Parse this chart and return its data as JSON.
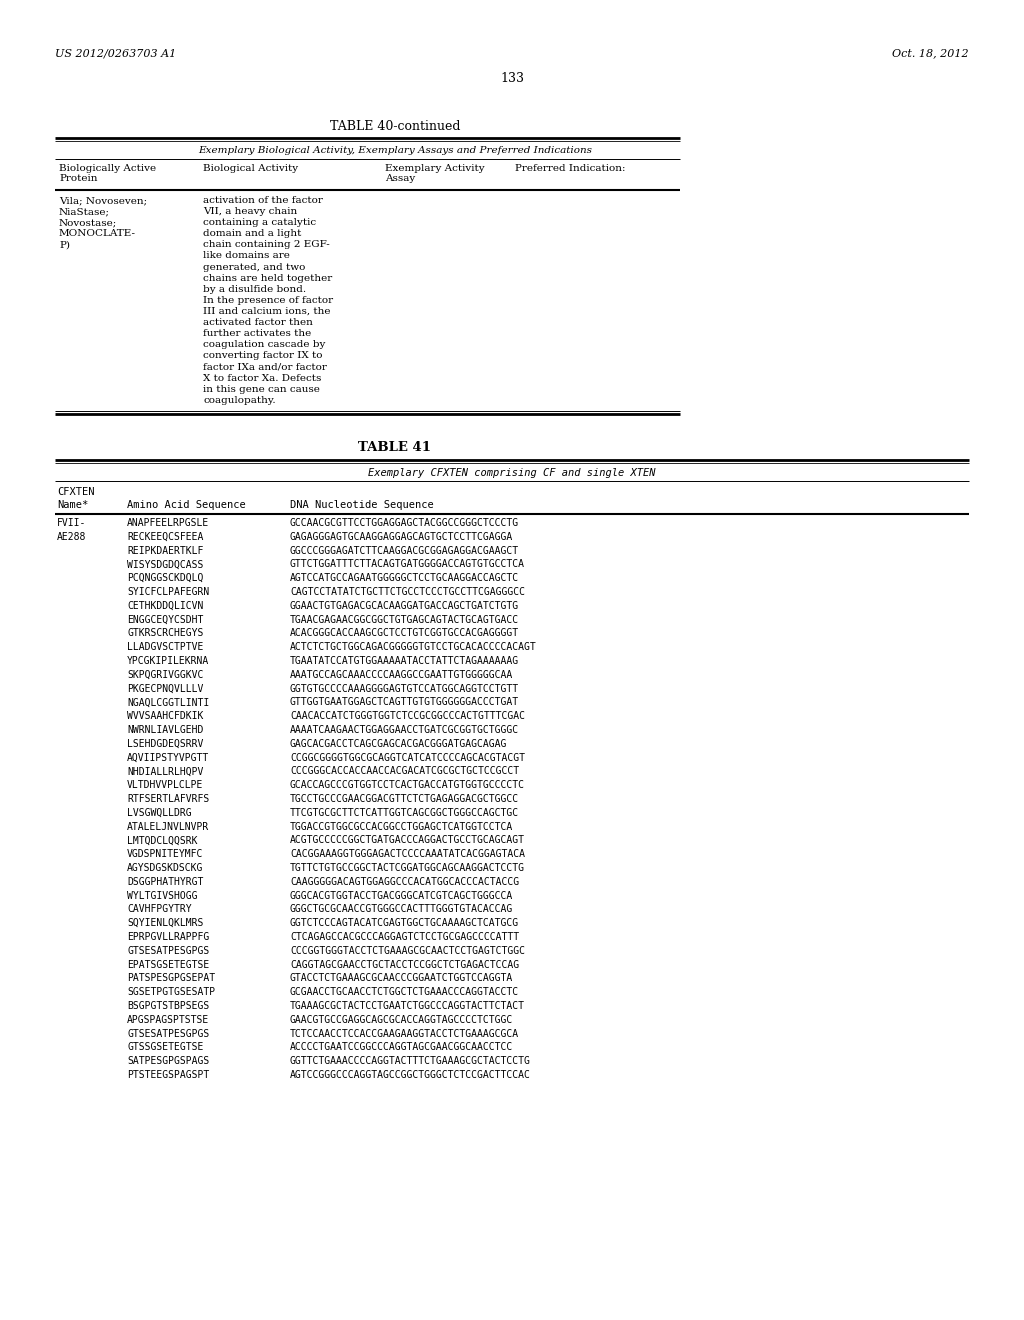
{
  "background_color": "#ffffff",
  "page_number": "133",
  "patent_left": "US 2012/0263703 A1",
  "patent_right": "Oct. 18, 2012",
  "table40_title": "TABLE 40-continued",
  "table40_subtitle": "Exemplary Biological Activity, Exemplary Assays and Preferred Indications",
  "table40_col0_header": "Biologically Active\nProtein",
  "table40_col1_header": "Biological Activity",
  "table40_col2_header": "Exemplary Activity\nAssay",
  "table40_col3_header": "Preferred Indication:",
  "table40_cell0": "Vila; Novoseven;\nNiaStase;\nNovostase;\nMONOCLATE-\nP)",
  "table40_cell1": "activation of the factor\nVII, a heavy chain\ncontaining a catalytic\ndomain and a light\nchain containing 2 EGF-\nlike domains are\ngenerated, and two\nchains are held together\nby a disulfide bond.\nIn the presence of factor\nIII and calcium ions, the\nactivated factor then\nfurther activates the\ncoagulation cascade by\nconverting factor IX to\nfactor IXa and/or factor\nX to factor Xa. Defects\nin this gene can cause\ncoagulopathy.",
  "table41_title": "TABLE 41",
  "table41_subtitle": "Exemplary CFXTEN comprising CF and single XTEN",
  "table41_rows": [
    [
      "FVII-",
      "ANAPFEELRPGSLE",
      "GCCAACGCGTTCCTGGAGGAGCTACGGCCGGGCTCCCTG"
    ],
    [
      "AE288",
      "RECKEEQCSFEEA",
      "GAGAGGGAGTGCAAGGAGGAGCAGTGCTCCTTCGAGGA"
    ],
    [
      "",
      "REIPKDAERTKLF",
      "GGCCCGGGAGATCTTCAAGGACGCGGAGAGGACGAAGCT"
    ],
    [
      "",
      "WISYSDGDQCASS",
      "GTTCTGGATTTCTTACAGTGATGGGGACCAGTGTGCCTCA"
    ],
    [
      "",
      "PCQNGGSCKDQLQ",
      "AGTCCATGCCAGAATGGGGGCTCCTGCAAGGACCAGCTC"
    ],
    [
      "",
      "SYICFCLPAFEGRN",
      "CAGTCCTATATCTGCTTCTGCCTCCCTGCCTTCGAGGGCC"
    ],
    [
      "",
      "CETHKDDQLICVN",
      "GGAACTGTGAGACGCACAAGGATGACCAGCTGATCTGTG"
    ],
    [
      "",
      "ENGGCEQYCSDHT",
      "TGAACGAGAACGGCGGCTGTGAGCAGTACTGCAGTGACC"
    ],
    [
      "",
      "GTKRSCRCHEGYS",
      "ACACGGGCACCAAGCGCTCCTGTCGGTGCCACGAGGGGT"
    ],
    [
      "",
      "LLADGVSCTPTVE",
      "ACTCTCTGCTGGCAGACGGGGGTGTCCTGCACACCCCACAGT"
    ],
    [
      "",
      "YPCGKIPILEKRNA",
      "TGAATATCCATGTGGAAAAATACCTATTCTAGAAAAAAG"
    ],
    [
      "",
      "SKPQGRIVGGKVC",
      "AAATGCCAGCAAACCCCAAGGCCGAATTGTGGGGGCAA"
    ],
    [
      "",
      "PKGECPNQVLLLV",
      "GGTGTGCCCCAAAGGGGAGTGTCCATGGCAGGTCCTGTT"
    ],
    [
      "",
      "NGAQLCGGTLINTI",
      "GTTGGTGAATGGAGCTCAGTTGTGTGGGGGGACCCTGAT"
    ],
    [
      "",
      "WVVSAAHCFDKIK",
      "CAACACCATCTGGGTGGTCTCCGCGGCCCACTGTTTCGAC"
    ],
    [
      "",
      "NWRNLIAVLGEHD",
      "AAAATCAAGAACTGGAGGAACCTGATCGCGGTGCTGGGC"
    ],
    [
      "",
      "LSEHDGDEQSRRV",
      "GAGCACGACCTCAGCGAGCACGACGGGATGAGCAGAG"
    ],
    [
      "",
      "AQVIIPSTYVPGTT",
      "CCGGCGGGGTGGCGCAGGTCATCATCCCCAGCACGTACGT"
    ],
    [
      "",
      "NHDIALLRLHQPV",
      "CCCGGGCACCACCAACCACGACATCGCGCTGCTCCGCCT"
    ],
    [
      "",
      "VLTDHVVPLCLPE",
      "GCACCAGCCCGTGGTCCTCACTGACCATGTGGTGCCCCTC"
    ],
    [
      "",
      "RTFSERTLAFVRFS",
      "TGCCTGCCCGAACGGACGTTCTCTGAGAGGACGCTGGCC"
    ],
    [
      "",
      "LVSGWQLLDRG",
      "TTCGTGCGCTTCTCATTGGTCAGCGGCTGGGCCAGCTGC"
    ],
    [
      "",
      "ATALELJNVLNVPR",
      "TGGACCGTGGCGCCACGGCCTGGAGCTCATGGTCCTCA"
    ],
    [
      "",
      "LMTQDCLQQSRK",
      "ACGTGCCCCCGGCTGATGACCCAGGACTGCCTGCAGCAGT"
    ],
    [
      "",
      "VGDSPNITEYMFC",
      "CACGGAAAGGTGGGAGACTCCCCAAATATCACGGAGTACA"
    ],
    [
      "",
      "AGYSDGSKDSCKG",
      "TGTTCTGTGCCGGCTACTCGGATGGCAGCAAGGACTCCTG"
    ],
    [
      "",
      "DSGGPHATHYRGT",
      "CAAGGGGGACAGTGGAGGCCCACATGGCACCCACTACCG"
    ],
    [
      "",
      "WYLTGIVSHOGG",
      "GGGCACGTGGTACCTGACGGGCATCGTCAGCTGGGCCA"
    ],
    [
      "",
      "CAVHFPGYTRY",
      "GGGCTGCGCAACCGTGGGCCACTTTGGGTGTACACCAG"
    ],
    [
      "",
      "SQYIENLQKLMRS",
      "GGTCTCCCAGTACATCGAGTGGCTGCAAAAGCTCATGCG"
    ],
    [
      "",
      "EPRPGVLLRAPPFG",
      "CTCAGAGCCACGCCCAGGAGTCTCCTGCGAGCCCCATTT"
    ],
    [
      "",
      "GTSESATPESGPGS",
      "CCCGGTGGGTACCTCTGAAAGCGCAACTCCTGAGTCTGGC"
    ],
    [
      "",
      "EPATSGSETEGTSE",
      "CAGGTAGCGAACCTGCTACCTCCGGCTCTGAGACTCCAG"
    ],
    [
      "",
      "PATSPESGPGSEPAT",
      "GTACCTCTGAAAGCGCAACCCGGAATCTGGTCCAGGTA"
    ],
    [
      "",
      "SGSETPGTGSESATP",
      "GCGAACCTGCAACCTCTGGCTCTGAAACCCAGGTACCTC"
    ],
    [
      "",
      "BSGPGTSTBPSEGS",
      "TGAAAGCGCTACTCCTGAATCTGGCCCAGGTACTTCTACT"
    ],
    [
      "",
      "APGSPAGSPTSTSE",
      "GAACGTGCCGAGGCAGCGCACCAGGTAGCCCCTCTGGC"
    ],
    [
      "",
      "GTSESATPESGPGS",
      "TCTCCAACCTCCACCGAAGAAGGTACCTCTGAAAGCGCA"
    ],
    [
      "",
      "GTSSGSETEGTSE",
      "ACCCCTGAATCCGGCCCAGGTAGCGAACGGCAACCTCC"
    ],
    [
      "",
      "SATPESGPGSPAGS",
      "GGTTCTGAAACCCCAGGTACTTTCTGAAAGCGCTACTCCTG"
    ],
    [
      "",
      "PTSTEEGSPAGSPT",
      "AGTCCGGGCCCAGGTAGCCGGCTGGGCTCTCCGACTTCCAC"
    ]
  ]
}
